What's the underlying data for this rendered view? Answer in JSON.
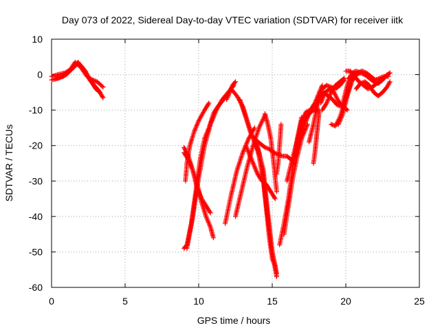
{
  "chart_data": {
    "type": "scatter",
    "title": "Day 073 of 2022, Sidereal Day-to-day VTEC variation (SDTVAR) for receiver iitk",
    "xlabel": "GPS time / hours",
    "ylabel": "SDTVAR / TECUs",
    "xlim": [
      0,
      25
    ],
    "ylim": [
      -60,
      10
    ],
    "x_ticks": [
      0,
      5,
      10,
      15,
      20,
      25
    ],
    "y_ticks": [
      -60,
      -50,
      -40,
      -30,
      -20,
      -10,
      0,
      10
    ],
    "grid": true,
    "marker": "+",
    "color": "#ff0000",
    "series": [
      {
        "x": [
          0.0,
          0.5,
          1.0,
          1.5,
          1.8,
          2.1,
          2.4,
          2.7,
          3.0,
          3.3
        ],
        "values": [
          -1.5,
          -1.0,
          0.0,
          2.0,
          3.5,
          2.0,
          0.0,
          -2.0,
          -4.0,
          -5.0
        ]
      },
      {
        "x": [
          0.0,
          0.4,
          0.9,
          1.3,
          1.7,
          2.0,
          2.3,
          2.6,
          2.9,
          3.2,
          3.5
        ],
        "values": [
          -0.5,
          0.0,
          0.5,
          1.5,
          3.0,
          2.5,
          1.0,
          -1.5,
          -3.0,
          -4.5,
          -6.5
        ]
      },
      {
        "x": [
          0.3,
          0.8,
          1.2,
          1.6,
          2.0,
          2.4,
          2.8,
          3.1,
          3.5
        ],
        "values": [
          -1.0,
          -0.5,
          1.0,
          3.5,
          2.0,
          -0.5,
          -1.5,
          -2.0,
          -3.5
        ]
      },
      {
        "x": [
          9.0,
          9.2,
          9.5,
          9.8,
          10.1,
          10.4,
          10.7,
          11.0,
          11.3,
          11.7,
          12.0
        ],
        "values": [
          -49.0,
          -48.0,
          -42.0,
          -33.0,
          -24.0,
          -18.0,
          -15.0,
          -11.0,
          -9.0,
          -7.0,
          -5.5
        ]
      },
      {
        "x": [
          9.0,
          9.3,
          9.6,
          9.9,
          10.2,
          10.5,
          10.8,
          11.0
        ],
        "values": [
          -20.5,
          -23.0,
          -27.0,
          -31.0,
          -36.0,
          -40.0,
          -43.0,
          -46.0
        ]
      },
      {
        "x": [
          9.1,
          9.2,
          9.4,
          9.7,
          10.0,
          10.4,
          10.7
        ],
        "values": [
          -30.0,
          -25.0,
          -20.0,
          -16.0,
          -13.0,
          -10.0,
          -8.0
        ]
      },
      {
        "x": [
          9.0,
          9.3,
          9.6,
          9.9,
          10.2,
          10.5,
          10.8
        ],
        "values": [
          -22.0,
          -24.0,
          -27.0,
          -32.0,
          -35.0,
          -37.0,
          -39.0
        ]
      },
      {
        "x": [
          9.2,
          9.6,
          10.0,
          10.4,
          10.8,
          11.2,
          11.6,
          12.0,
          12.4
        ],
        "values": [
          -49.0,
          -40.0,
          -29.0,
          -20.0,
          -14.0,
          -10.0,
          -7.0,
          -5.0,
          -3.0
        ]
      },
      {
        "x": [
          11.8,
          12.2,
          12.6,
          13.0,
          13.4,
          13.8
        ],
        "values": [
          -42.0,
          -34.0,
          -27.0,
          -22.0,
          -18.0,
          -15.0
        ]
      },
      {
        "x": [
          11.9,
          12.1,
          12.3,
          12.5
        ],
        "values": [
          -7.0,
          -5.0,
          -3.0,
          -2.0
        ]
      },
      {
        "x": [
          12.5,
          12.9,
          13.3,
          13.7,
          14.1,
          14.5
        ],
        "values": [
          -40.0,
          -33.0,
          -26.0,
          -20.0,
          -15.0,
          -11.5
        ]
      },
      {
        "x": [
          12.2,
          12.6,
          13.0,
          13.3,
          13.6,
          14.0,
          14.3,
          14.6,
          15.0,
          15.3
        ],
        "values": [
          -4.0,
          -6.0,
          -9.0,
          -13.0,
          -17.0,
          -20.0,
          -26.0,
          -37.0,
          -50.0,
          -56.0
        ]
      },
      {
        "x": [
          12.8,
          13.2,
          13.5,
          13.8,
          14.1,
          14.4,
          14.7,
          15.0,
          15.3
        ],
        "values": [
          -7.0,
          -12.0,
          -16.0,
          -19.0,
          -22.0,
          -27.0,
          -39.0,
          -50.0,
          -57.0
        ]
      },
      {
        "x": [
          13.2,
          13.6,
          14.0,
          14.3,
          14.6,
          14.9,
          15.2
        ],
        "values": [
          -20.0,
          -24.0,
          -28.0,
          -30.0,
          -31.0,
          -33.0,
          -35.0
        ]
      },
      {
        "x": [
          13.8,
          14.1,
          14.4,
          14.6,
          14.8,
          15.0,
          15.2
        ],
        "values": [
          -18.0,
          -23.0,
          -30.0,
          -38.0,
          -46.0,
          -52.0,
          -54.0
        ]
      },
      {
        "x": [
          13.9,
          14.2,
          14.5,
          14.8,
          15.1,
          15.4,
          15.7,
          16.0,
          16.3,
          16.5
        ],
        "values": [
          -18.5,
          -19.5,
          -20.5,
          -21.0,
          -22.0,
          -22.5,
          -23.0,
          -23.0,
          -24.0,
          -25.0
        ]
      },
      {
        "x": [
          14.5,
          14.7,
          14.9,
          15.1,
          15.3
        ],
        "values": [
          -11.0,
          -14.0,
          -18.0,
          -25.0,
          -33.0
        ]
      },
      {
        "x": [
          15.3,
          15.4,
          15.5,
          15.6
        ],
        "values": [
          -28.0,
          -25.0,
          -20.0,
          -14.0
        ]
      },
      {
        "x": [
          15.5,
          15.8,
          16.1,
          16.4,
          16.7,
          17.0
        ],
        "values": [
          -48.0,
          -42.0,
          -35.0,
          -26.0,
          -18.0,
          -12.0
        ]
      },
      {
        "x": [
          15.8,
          16.1,
          16.4,
          16.7,
          17.0,
          17.4
        ],
        "values": [
          -45.0,
          -37.0,
          -29.0,
          -23.0,
          -18.0,
          -14.0
        ]
      },
      {
        "x": [
          16.0,
          16.3,
          16.6,
          16.9,
          17.2,
          17.5
        ],
        "values": [
          -30.0,
          -25.0,
          -20.0,
          -16.0,
          -13.0,
          -11.0
        ]
      },
      {
        "x": [
          16.4,
          16.6,
          16.8,
          17.0,
          17.3,
          17.6,
          17.9,
          18.2,
          18.4
        ],
        "values": [
          -26.0,
          -21.0,
          -17.0,
          -13.0,
          -10.5,
          -10.0,
          -8.0,
          -5.0,
          -3.0
        ]
      },
      {
        "x": [
          16.6,
          16.9,
          17.2,
          17.5,
          17.8,
          18.1
        ],
        "values": [
          -22.0,
          -18.0,
          -14.0,
          -11.0,
          -10.0,
          -10.0
        ]
      },
      {
        "x": [
          17.8,
          17.9,
          18.0,
          18.1,
          18.2
        ],
        "values": [
          -25.0,
          -22.0,
          -18.0,
          -14.0,
          -10.0
        ]
      },
      {
        "x": [
          17.5,
          17.8,
          18.1,
          18.4,
          18.7,
          19.0,
          19.3,
          19.6,
          19.9
        ],
        "values": [
          -19.0,
          -14.0,
          -8.0,
          -4.0,
          -3.0,
          -3.5,
          -4.0,
          -3.0,
          -1.5
        ]
      },
      {
        "x": [
          17.9,
          18.2,
          18.5,
          18.8,
          19.1,
          19.4,
          19.7,
          20.0
        ],
        "values": [
          -10.0,
          -6.5,
          -5.0,
          -6.0,
          -7.0,
          -8.5,
          -9.0,
          -9.5
        ]
      },
      {
        "x": [
          18.3,
          18.6,
          18.9,
          19.2,
          19.5,
          19.8,
          20.1
        ],
        "values": [
          -8.0,
          -5.0,
          -4.0,
          -5.0,
          -7.5,
          -9.0,
          -10.0
        ]
      },
      {
        "x": [
          18.4,
          18.7,
          19.0,
          19.3,
          19.6,
          19.9
        ],
        "values": [
          -10.0,
          -8.0,
          -5.0,
          -3.0,
          -2.0,
          -1.0
        ]
      },
      {
        "x": [
          19.0,
          19.3,
          19.6,
          19.9,
          20.2,
          20.5,
          20.8,
          21.1
        ],
        "values": [
          -14.0,
          -14.5,
          -12.0,
          -8.0,
          -4.0,
          -1.0,
          0.5,
          1.0
        ]
      },
      {
        "x": [
          19.5,
          19.8,
          20.1,
          20.4,
          20.7,
          21.0,
          21.3
        ],
        "values": [
          -14.0,
          -11.0,
          -6.0,
          -2.0,
          0.0,
          0.5,
          0.0
        ]
      },
      {
        "x": [
          19.8,
          20.1,
          20.4,
          20.7,
          21.0,
          21.3,
          21.6,
          21.9,
          22.2,
          22.5,
          22.8
        ],
        "values": [
          -8.0,
          -3.0,
          0.5,
          1.0,
          0.5,
          0.0,
          -1.0,
          -2.0,
          -2.5,
          -1.5,
          0.0
        ]
      },
      {
        "x": [
          20.0,
          20.3,
          20.6,
          20.9,
          21.2,
          21.5,
          21.8,
          22.1,
          22.4,
          22.7,
          23.0
        ],
        "values": [
          1.0,
          1.0,
          -0.5,
          -2.0,
          -3.0,
          -4.0,
          -3.5,
          -2.5,
          -1.5,
          -0.5,
          0.5
        ]
      },
      {
        "x": [
          20.2,
          20.5,
          20.8,
          21.1,
          21.4,
          21.7,
          22.0,
          22.3,
          22.6,
          22.9
        ],
        "values": [
          -1.0,
          0.0,
          0.5,
          1.0,
          0.5,
          -0.5,
          -1.5,
          -1.0,
          -0.5,
          -0.5
        ]
      },
      {
        "x": [
          20.7,
          21.0,
          21.3,
          21.6,
          21.9,
          22.2,
          22.5,
          22.8,
          23.0
        ],
        "values": [
          -4.0,
          -2.5,
          -2.0,
          -3.0,
          -5.0,
          -6.0,
          -5.0,
          -3.5,
          -2.0
        ]
      }
    ]
  }
}
